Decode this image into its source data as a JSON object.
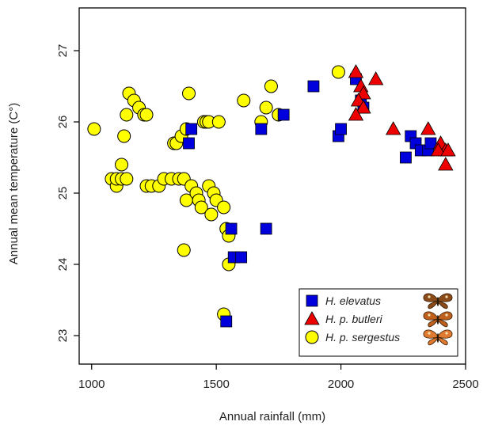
{
  "chart_data": {
    "type": "scatter",
    "xlabel": "Annual rainfall (mm)",
    "ylabel": "Annual mean temperature (C°)",
    "xlim": [
      950,
      2500
    ],
    "ylim": [
      22.6,
      27.6
    ],
    "xticks": [
      "1000",
      "1500",
      "2000",
      "2500"
    ],
    "yticks": [
      "23",
      "24",
      "25",
      "26",
      "27"
    ],
    "legend_position": "bottom-right",
    "series": [
      {
        "name": "H. elevatus",
        "marker": "square",
        "color": "#0000dd",
        "icon": "butterfly-icon",
        "points": [
          [
            1390,
            25.7
          ],
          [
            1400,
            25.9
          ],
          [
            1560,
            24.5
          ],
          [
            1570,
            24.1
          ],
          [
            1600,
            24.1
          ],
          [
            1700,
            24.5
          ],
          [
            1680,
            25.9
          ],
          [
            1770,
            26.1
          ],
          [
            1890,
            26.5
          ],
          [
            1990,
            25.8
          ],
          [
            2000,
            25.9
          ],
          [
            2060,
            26.6
          ],
          [
            2080,
            26.3
          ],
          [
            2090,
            26.2
          ],
          [
            2260,
            25.5
          ],
          [
            2280,
            25.8
          ],
          [
            2300,
            25.7
          ],
          [
            2320,
            25.6
          ],
          [
            2350,
            25.6
          ],
          [
            2360,
            25.7
          ],
          [
            1540,
            23.2
          ]
        ]
      },
      {
        "name": "H. p. butleri",
        "marker": "triangle",
        "color": "#ee0000",
        "icon": "butterfly-icon",
        "points": [
          [
            2060,
            26.7
          ],
          [
            2140,
            26.6
          ],
          [
            2080,
            26.5
          ],
          [
            2090,
            26.4
          ],
          [
            2070,
            26.3
          ],
          [
            2090,
            26.2
          ],
          [
            2060,
            26.1
          ],
          [
            2210,
            25.9
          ],
          [
            2350,
            25.9
          ],
          [
            2400,
            25.7
          ],
          [
            2420,
            25.6
          ],
          [
            2390,
            25.6
          ],
          [
            2430,
            25.6
          ],
          [
            2420,
            25.4
          ]
        ]
      },
      {
        "name": "H. p. sergestus",
        "marker": "circle",
        "color": "#ffff00",
        "icon": "butterfly-icon",
        "points": [
          [
            1010,
            25.9
          ],
          [
            1080,
            25.2
          ],
          [
            1100,
            25.1
          ],
          [
            1100,
            25.2
          ],
          [
            1120,
            25.2
          ],
          [
            1120,
            25.4
          ],
          [
            1130,
            25.8
          ],
          [
            1140,
            25.2
          ],
          [
            1140,
            26.1
          ],
          [
            1150,
            26.4
          ],
          [
            1170,
            26.3
          ],
          [
            1190,
            26.2
          ],
          [
            1210,
            26.1
          ],
          [
            1220,
            26.1
          ],
          [
            1220,
            25.1
          ],
          [
            1240,
            25.1
          ],
          [
            1270,
            25.1
          ],
          [
            1290,
            25.2
          ],
          [
            1320,
            25.2
          ],
          [
            1330,
            25.7
          ],
          [
            1340,
            25.7
          ],
          [
            1350,
            25.2
          ],
          [
            1360,
            25.8
          ],
          [
            1370,
            25.2
          ],
          [
            1380,
            25.9
          ],
          [
            1390,
            26.4
          ],
          [
            1380,
            24.9
          ],
          [
            1400,
            25.1
          ],
          [
            1420,
            25.0
          ],
          [
            1430,
            24.9
          ],
          [
            1440,
            24.8
          ],
          [
            1450,
            26.0
          ],
          [
            1460,
            26.0
          ],
          [
            1470,
            25.1
          ],
          [
            1470,
            26.0
          ],
          [
            1480,
            24.7
          ],
          [
            1490,
            25.0
          ],
          [
            1500,
            24.9
          ],
          [
            1510,
            26.0
          ],
          [
            1530,
            24.8
          ],
          [
            1540,
            24.5
          ],
          [
            1550,
            24.4
          ],
          [
            1550,
            24.0
          ],
          [
            1370,
            24.2
          ],
          [
            1530,
            23.3
          ],
          [
            1610,
            26.3
          ],
          [
            1680,
            26.0
          ],
          [
            1700,
            26.2
          ],
          [
            1720,
            26.5
          ],
          [
            1750,
            26.1
          ],
          [
            1990,
            26.7
          ]
        ]
      }
    ]
  }
}
